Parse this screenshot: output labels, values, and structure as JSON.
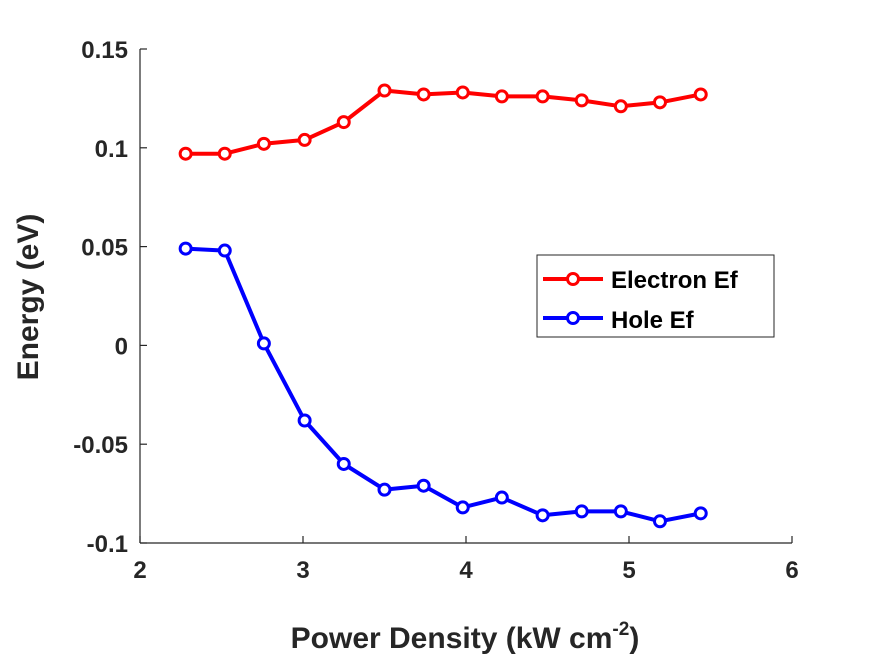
{
  "chart_data": {
    "type": "line",
    "title": "",
    "xlabel": "Power Density (kW cm",
    "xlabel_superscript": "-2",
    "xlabel_suffix": ")",
    "ylabel": "Energy (eV)",
    "xlim": [
      2,
      6
    ],
    "ylim": [
      -0.1,
      0.15
    ],
    "xticks": [
      2,
      3,
      4,
      5,
      6
    ],
    "xtick_labels": [
      "2",
      "3",
      "4",
      "5",
      "6"
    ],
    "yticks": [
      -0.1,
      -0.05,
      0,
      0.05,
      0.1,
      0.15
    ],
    "ytick_labels": [
      "-0.1",
      "-0.05",
      "0",
      "0.05",
      "0.1",
      "0.15"
    ],
    "grid": false,
    "legend_position": "right",
    "x": [
      2.28,
      2.52,
      2.76,
      3.01,
      3.25,
      3.5,
      3.74,
      3.98,
      4.22,
      4.47,
      4.71,
      4.95,
      5.19,
      5.44
    ],
    "series": [
      {
        "name": "Electron Ef",
        "color": "#ff0000",
        "marker": "circle",
        "values": [
          0.097,
          0.097,
          0.102,
          0.104,
          0.113,
          0.129,
          0.127,
          0.128,
          0.126,
          0.126,
          0.124,
          0.121,
          0.123,
          0.127
        ]
      },
      {
        "name": "Hole Ef",
        "color": "#0000ff",
        "marker": "circle",
        "values": [
          0.049,
          0.048,
          0.001,
          -0.038,
          -0.06,
          -0.073,
          -0.071,
          -0.082,
          -0.077,
          -0.086,
          -0.084,
          -0.084,
          -0.089,
          -0.085
        ]
      }
    ]
  }
}
